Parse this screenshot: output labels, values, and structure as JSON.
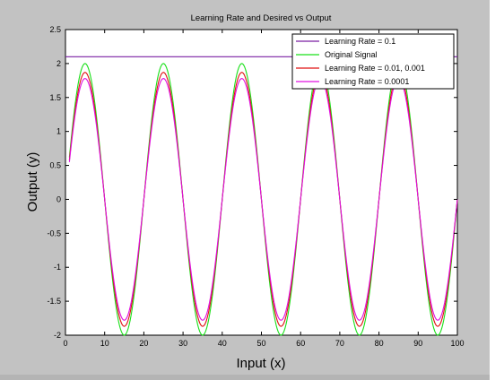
{
  "chart_data": {
    "type": "line",
    "title": "Learning Rate and Desired vs Output",
    "xlabel": "Input (x)",
    "ylabel": "Output (y)",
    "xlim": [
      0,
      100
    ],
    "ylim": [
      -2,
      2.5
    ],
    "xticks": [
      0,
      10,
      20,
      30,
      40,
      50,
      60,
      70,
      80,
      90,
      100
    ],
    "yticks": [
      -2,
      -1.5,
      -1,
      -0.5,
      0,
      0.5,
      1,
      1.5,
      2,
      2.5
    ],
    "xtick_labels": [
      "0",
      "10",
      "20",
      "30",
      "40",
      "50",
      "60",
      "70",
      "80",
      "90",
      "100"
    ],
    "ytick_labels": [
      "-2",
      "-1.5",
      "-1",
      "-0.5",
      "0",
      "0.5",
      "1",
      "1.5",
      "2",
      "2.5"
    ],
    "legend_position": "top-right",
    "series": [
      {
        "name": "Learning Rate = 0.1",
        "color": "#7a1fa2",
        "kind": "constant",
        "y": 2.1
      },
      {
        "name": "Original Signal",
        "color": "#19e019",
        "kind": "sinusoid",
        "amplitude": 2.0,
        "period": 20,
        "peak_x": 5
      },
      {
        "name": "Learning Rate = 0.01, 0.001",
        "color": "#e01010",
        "kind": "sinusoid",
        "amplitude": 1.87,
        "period": 20,
        "peak_x": 5
      },
      {
        "name": "Learning Rate = 0.0001",
        "color": "#e010e0",
        "kind": "sinusoid",
        "amplitude": 1.78,
        "period": 20,
        "peak_x": 5
      }
    ]
  }
}
